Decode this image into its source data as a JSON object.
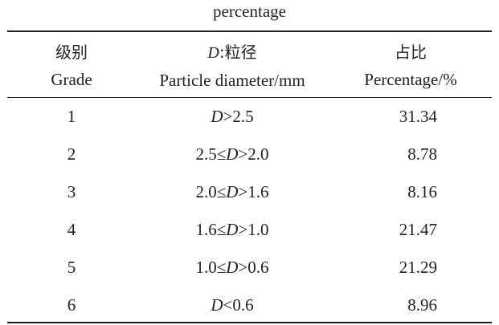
{
  "caption": "percentage",
  "headers": {
    "grade": {
      "cn": "级别",
      "en": "Grade"
    },
    "diameter": {
      "cn_var": "D",
      "cn_rest": ":粒径",
      "en": "Particle diameter/mm"
    },
    "percentage": {
      "cn": "占比",
      "en": "Percentage/%"
    }
  },
  "rows": [
    {
      "grade": "1",
      "diameter": "D>2.5",
      "percentage": "31.34"
    },
    {
      "grade": "2",
      "diameter": "2.5≤D>2.0",
      "percentage": "8.78"
    },
    {
      "grade": "3",
      "diameter": "2.0≤D>1.6",
      "percentage": "8.16"
    },
    {
      "grade": "4",
      "diameter": "1.6≤D>1.0",
      "percentage": "21.47"
    },
    {
      "grade": "5",
      "diameter": "1.0≤D>0.6",
      "percentage": "21.29"
    },
    {
      "grade": "6",
      "diameter": "D<0.6",
      "percentage": "8.96"
    }
  ]
}
